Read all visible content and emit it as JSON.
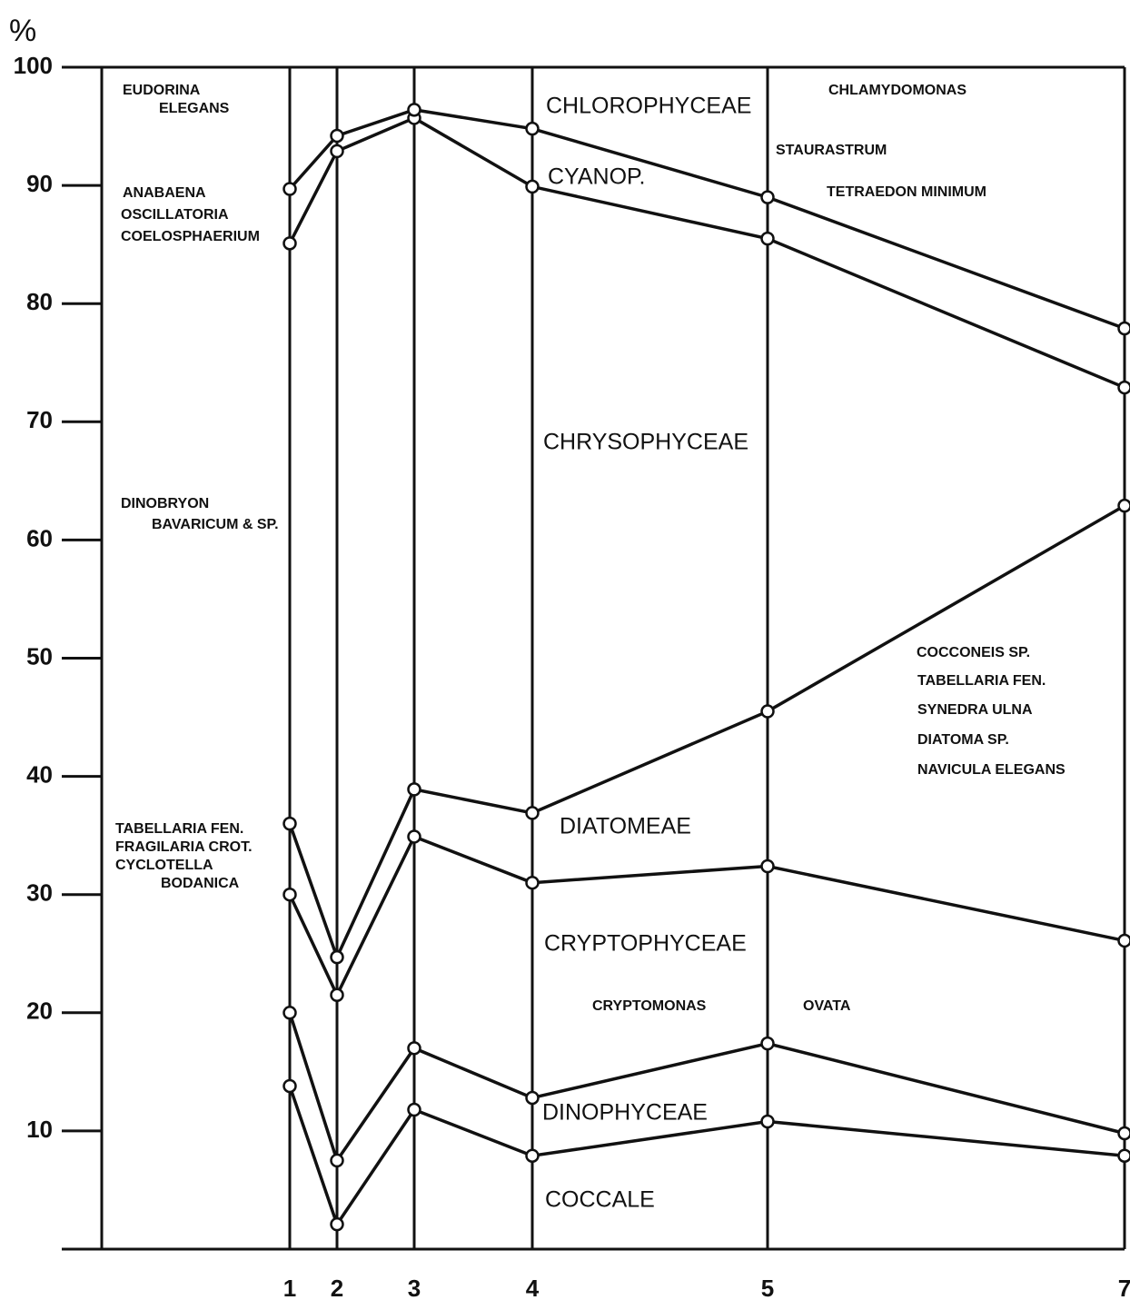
{
  "chart_data": {
    "type": "stacked_line",
    "y_unit": "%",
    "categories": [
      "1",
      "2",
      "3",
      "4",
      "5",
      "7"
    ],
    "ylim": [
      0,
      100
    ],
    "yticks": [
      10,
      20,
      30,
      40,
      50,
      60,
      70,
      80,
      90,
      100
    ],
    "color": "#111111",
    "series": [
      {
        "name": "COCCALE",
        "values": [
          13.8,
          2.1,
          11.8,
          7.9,
          10.8,
          7.9
        ]
      },
      {
        "name": "DINOPHYCEAE",
        "values": [
          6.2,
          5.4,
          5.2,
          4.9,
          6.6,
          1.9
        ]
      },
      {
        "name": "CRYPTOPHYCEAE",
        "values": [
          10.0,
          14.0,
          17.9,
          18.2,
          15.0,
          16.3
        ]
      },
      {
        "name": "DIATOMEAE",
        "values": [
          6.0,
          3.2,
          4.0,
          5.9,
          13.1,
          36.8
        ]
      },
      {
        "name": "CHRYSOPHYCEAE",
        "values": [
          49.1,
          68.2,
          56.8,
          53.0,
          40.0,
          10.0
        ]
      },
      {
        "name": "CYANOP.",
        "values": [
          4.6,
          1.3,
          0.7,
          4.9,
          3.5,
          5.0
        ]
      }
    ],
    "top_region": "CHLOROPHYCEAE",
    "annotations": [
      "EUDORINA",
      "ELEGANS",
      "ANABAENA",
      "OSCILLATORIA",
      "COELOSPHAERIUM",
      "DINOBRYON",
      "BAVARICUM & SP.",
      "TABELLARIA FEN.",
      "FRAGILARIA CROT.",
      "CYCLOTELLA",
      "BODANICA",
      "CHLAMYDOMONAS",
      "STAURASTRUM",
      "TETRAEDON MINIMUM",
      "COCCONEIS SP.",
      "TABELLARIA FEN.",
      "SYNEDRA ULNA",
      "DIATOMA SP.",
      "NAVICULA ELEGANS",
      "CRYPTOMONAS",
      "OVATA"
    ]
  }
}
